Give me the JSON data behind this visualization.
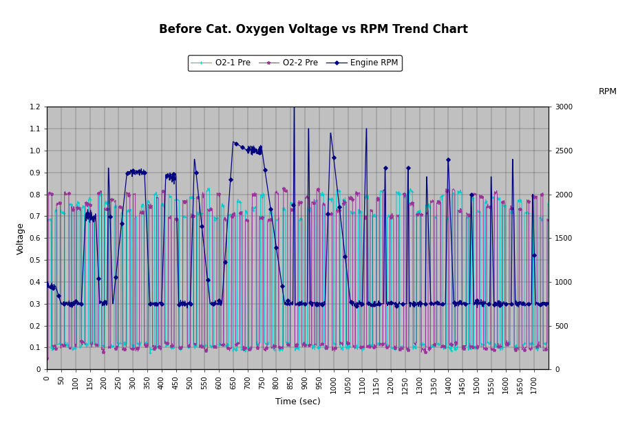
{
  "title": "Before Cat. Oxygen Voltage vs RPM Trend Chart",
  "xlabel": "Time (sec)",
  "ylabel_left": "Voltage",
  "ylabel_right": "RPM",
  "ylim_left": [
    0,
    1.2
  ],
  "ylim_right": [
    0,
    3000
  ],
  "xlim": [
    0,
    1750
  ],
  "yticks_left": [
    0,
    0.1,
    0.2,
    0.3,
    0.4,
    0.5,
    0.6,
    0.7,
    0.8,
    0.9,
    1.0,
    1.1,
    1.2
  ],
  "yticks_right": [
    0,
    500,
    1000,
    1500,
    2000,
    2500,
    3000
  ],
  "xticks": [
    0,
    50,
    100,
    150,
    200,
    250,
    300,
    350,
    400,
    450,
    500,
    550,
    600,
    650,
    700,
    750,
    800,
    850,
    900,
    950,
    1000,
    1050,
    1100,
    1150,
    1200,
    1250,
    1300,
    1350,
    1400,
    1450,
    1500,
    1550,
    1600,
    1650,
    1700
  ],
  "legend_labels": [
    "O2-1 Pre",
    "O2-2 Pre",
    "Engine RPM"
  ],
  "color_o21": "#00CCCC",
  "color_o22": "#993399",
  "color_rpm": "#000080",
  "background_color": "#C0C0C0",
  "fig_background": "#FFFFFF",
  "title_fontsize": 12,
  "label_fontsize": 9,
  "tick_fontsize": 7.5
}
